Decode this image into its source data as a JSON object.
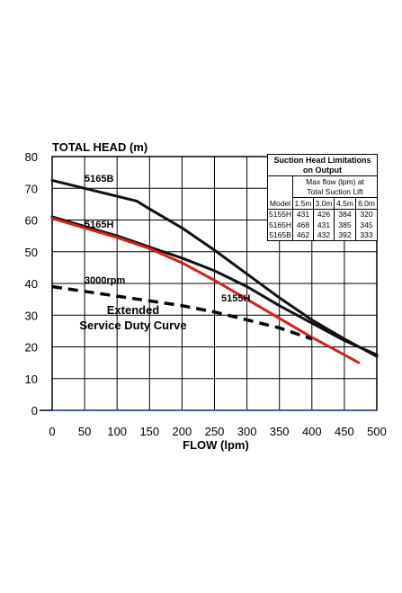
{
  "chart_data": {
    "type": "line",
    "title": "TOTAL HEAD (m)",
    "xlabel": "FLOW (lpm)",
    "ylabel": "",
    "xlim": [
      0,
      500
    ],
    "ylim": [
      0,
      80
    ],
    "x_ticks": [
      0,
      50,
      100,
      150,
      200,
      250,
      300,
      350,
      400,
      450,
      500
    ],
    "y_ticks": [
      0,
      10,
      20,
      30,
      40,
      50,
      60,
      70,
      80
    ],
    "grid": true,
    "series": [
      {
        "name": "5165B",
        "color": "#111111",
        "style": "solid",
        "x": [
          0,
          50,
          100,
          130,
          150,
          200,
          250,
          300,
          350,
          400,
          450,
          500
        ],
        "y": [
          72.5,
          70,
          67.5,
          66,
          63.5,
          57.5,
          50.5,
          43,
          35.5,
          28.5,
          22.5,
          17
        ]
      },
      {
        "name": "5165H",
        "color": "#111111",
        "style": "solid",
        "x": [
          0,
          50,
          100,
          150,
          200,
          250,
          300,
          350,
          400,
          450,
          500
        ],
        "y": [
          61,
          58,
          55,
          51.5,
          48,
          44,
          39,
          33,
          27.5,
          22,
          17.5
        ]
      },
      {
        "name": "5155H",
        "color": "#d42020",
        "style": "solid",
        "x": [
          0,
          50,
          100,
          150,
          200,
          250,
          300,
          350,
          400,
          450,
          472
        ],
        "y": [
          60.5,
          57.5,
          54.5,
          51,
          46.5,
          41,
          35,
          29,
          23,
          17.5,
          15
        ]
      },
      {
        "name": "3000rpm",
        "color": "#000000",
        "style": "dashed",
        "x": [
          0,
          50,
          100,
          150,
          200,
          250,
          300,
          350,
          400
        ],
        "y": [
          39,
          37.5,
          36,
          34.5,
          33,
          31,
          28.5,
          26,
          22.5
        ]
      }
    ],
    "series_labels": [
      "5165B",
      "5165H",
      "5155H",
      "3000rpm"
    ],
    "annotation": [
      "Extended",
      "Service Duty Curve"
    ]
  },
  "table": {
    "title_line1": "Suction Head Limitations",
    "title_line2": "on Output",
    "subtitle_line1": "Max flow (lpm) at",
    "subtitle_line2": "Total Suction Lift",
    "headers": [
      "Model",
      "1.5m",
      "3.0m",
      "4.5m",
      "6.0m"
    ],
    "rows": [
      [
        "5155H",
        "431",
        "426",
        "384",
        "320"
      ],
      [
        "5165H",
        "468",
        "431",
        "385",
        "345"
      ],
      [
        "5165B",
        "462",
        "432",
        "392",
        "333"
      ]
    ]
  }
}
